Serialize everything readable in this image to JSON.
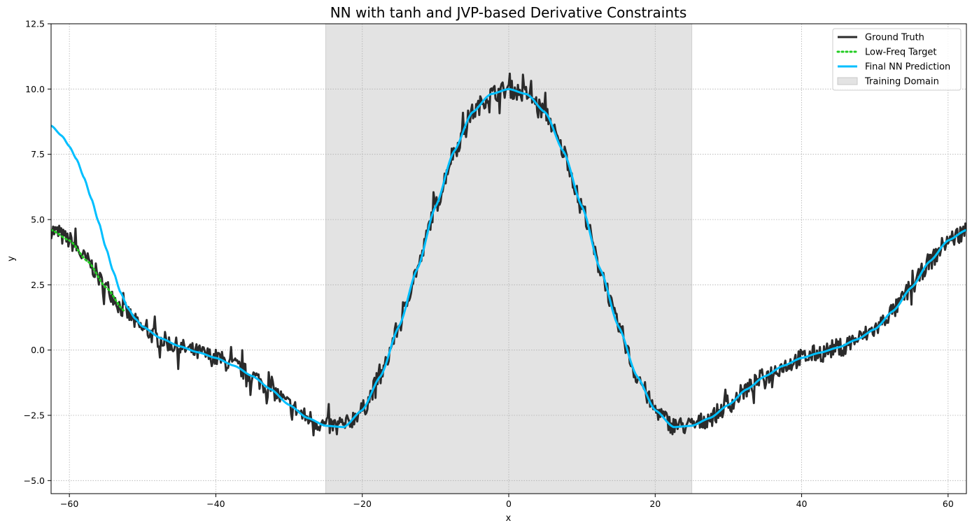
{
  "chart_data": {
    "type": "line",
    "title": "NN with tanh and JVP-based Derivative Constraints",
    "xlabel": "x",
    "ylabel": "y",
    "xlim": [
      -62.5,
      62.5
    ],
    "ylim": [
      -5.5,
      12.5
    ],
    "xticks": [
      -60,
      -40,
      -20,
      0,
      20,
      40,
      60
    ],
    "xtick_labels": [
      "−60",
      "−40",
      "−20",
      "0",
      "20",
      "40",
      "60"
    ],
    "yticks": [
      -5.0,
      -2.5,
      0.0,
      2.5,
      5.0,
      7.5,
      10.0,
      12.5
    ],
    "ytick_labels": [
      "−5.0",
      "−2.5",
      "0.0",
      "2.5",
      "5.0",
      "7.5",
      "10.0",
      "12.5"
    ],
    "grid": true,
    "legend_position": "top-right",
    "shaded_region": {
      "name": "Training Domain",
      "x": [
        -25,
        25
      ],
      "color": "#e3e3e3"
    },
    "series": [
      {
        "name": "Ground Truth",
        "color": "#2b2b2b",
        "style": "solid",
        "description_points": {
          "x": [
            -62.5,
            -60,
            -57.5,
            -55,
            -52.5,
            -50,
            -47.5,
            -45,
            -42.5,
            -40,
            -37.5,
            -35,
            -32.5,
            -30,
            -27.5,
            -25,
            -22.5,
            -20,
            -17.5,
            -15,
            -12.5,
            -10,
            -7.5,
            -5,
            -2.5,
            0,
            2.5,
            5,
            7.5,
            10,
            12.5,
            15,
            17.5,
            20,
            22.5,
            25,
            27.5,
            30,
            32.5,
            35,
            37.5,
            40,
            42.5,
            45,
            47.5,
            50,
            52.5,
            55,
            57.5,
            60,
            62.5
          ],
          "y": [
            4.6,
            4.2,
            3.4,
            2.4,
            1.5,
            0.8,
            0.4,
            0.1,
            -0.1,
            -0.3,
            -0.6,
            -1.0,
            -1.5,
            -2.1,
            -2.6,
            -2.9,
            -2.9,
            -2.3,
            -1.0,
            0.9,
            3.1,
            5.5,
            7.6,
            9.1,
            9.8,
            10.0,
            9.8,
            9.1,
            7.6,
            5.5,
            3.1,
            0.9,
            -1.0,
            -2.3,
            -2.9,
            -2.9,
            -2.6,
            -2.1,
            -1.5,
            -1.0,
            -0.6,
            -0.3,
            -0.1,
            0.1,
            0.4,
            0.8,
            1.5,
            2.4,
            3.4,
            4.2,
            4.6
          ]
        },
        "noise_amplitude": 0.35
      },
      {
        "name": "Low-Freq Target",
        "color": "#22cc22",
        "style": "dotted",
        "x": [
          -62.5,
          -60,
          -57.5,
          -55,
          -52.5,
          52.5,
          55,
          57.5,
          60,
          62.5
        ],
        "y": [
          4.6,
          4.2,
          3.4,
          2.4,
          1.5,
          1.5,
          2.4,
          3.4,
          4.2,
          4.6
        ]
      },
      {
        "name": "Final NN Prediction",
        "color": "#00bfff",
        "style": "solid",
        "x": [
          -62.5,
          -61,
          -60,
          -59,
          -58,
          -57,
          -56,
          -55,
          -54,
          -53,
          -52,
          -51,
          -50,
          -47.5,
          -45,
          -42.5,
          -40,
          -37.5,
          -35,
          -32.5,
          -30,
          -27.5,
          -25,
          -22.5,
          -20,
          -17.5,
          -15,
          -12.5,
          -10,
          -7.5,
          -5,
          -2.5,
          0,
          2.5,
          5,
          7.5,
          10,
          12.5,
          15,
          17.5,
          20,
          22.5,
          25,
          27.5,
          30,
          32.5,
          35,
          37.5,
          40,
          42.5,
          45,
          47.5,
          50,
          52.5,
          55,
          57.5,
          60,
          62.5
        ],
        "y": [
          8.6,
          8.2,
          7.8,
          7.3,
          6.6,
          5.8,
          4.9,
          3.9,
          3.0,
          2.2,
          1.6,
          1.2,
          0.9,
          0.45,
          0.15,
          -0.08,
          -0.3,
          -0.6,
          -1.0,
          -1.5,
          -2.1,
          -2.6,
          -2.9,
          -2.95,
          -2.3,
          -1.0,
          0.9,
          3.1,
          5.5,
          7.6,
          9.1,
          9.8,
          10.0,
          9.8,
          9.1,
          7.6,
          5.5,
          3.1,
          0.9,
          -1.0,
          -2.3,
          -2.95,
          -2.9,
          -2.6,
          -2.1,
          -1.5,
          -1.0,
          -0.6,
          -0.3,
          -0.1,
          0.1,
          0.4,
          0.8,
          1.5,
          2.4,
          3.4,
          4.2,
          4.6
        ]
      }
    ],
    "legend": [
      {
        "label": "Ground Truth",
        "color": "#2b2b2b",
        "kind": "line-solid"
      },
      {
        "label": "Low-Freq Target",
        "color": "#22cc22",
        "kind": "line-dotted"
      },
      {
        "label": "Final NN Prediction",
        "color": "#00bfff",
        "kind": "line-solid"
      },
      {
        "label": "Training Domain",
        "color": "#e3e3e3",
        "kind": "patch"
      }
    ]
  }
}
